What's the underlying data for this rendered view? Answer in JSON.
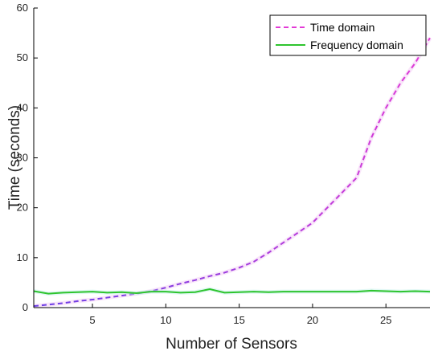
{
  "chart_data": {
    "type": "line",
    "title": "",
    "xlabel": "Number of Sensors",
    "ylabel": "Time (seconds)",
    "xlim": [
      1,
      28
    ],
    "ylim": [
      0,
      60
    ],
    "xticks": [
      5,
      10,
      15,
      20,
      25
    ],
    "yticks": [
      0,
      10,
      20,
      30,
      40,
      50,
      60
    ],
    "grid": false,
    "legend_position": "top-right",
    "series": [
      {
        "name": "Time domain",
        "style": "dashed",
        "color": "#e23ad6",
        "color_start": "#6a3ee6",
        "x": [
          1,
          2,
          3,
          4,
          5,
          6,
          7,
          8,
          9,
          10,
          11,
          12,
          13,
          14,
          15,
          16,
          17,
          18,
          19,
          20,
          21,
          22,
          23,
          24,
          25,
          26,
          27,
          28
        ],
        "values": [
          0.3,
          0.6,
          0.9,
          1.3,
          1.6,
          2.0,
          2.4,
          2.8,
          3.3,
          4.0,
          4.8,
          5.5,
          6.3,
          7.0,
          8.0,
          9.2,
          11.0,
          13.0,
          15.0,
          17.0,
          20.0,
          23.0,
          26.0,
          34.0,
          40.0,
          45.0,
          49.0,
          54.0
        ]
      },
      {
        "name": "Frequency domain",
        "style": "solid",
        "color": "#2ec42e",
        "x": [
          1,
          2,
          3,
          4,
          5,
          6,
          7,
          8,
          9,
          10,
          11,
          12,
          13,
          14,
          15,
          16,
          17,
          18,
          19,
          20,
          21,
          22,
          23,
          24,
          25,
          26,
          27,
          28
        ],
        "values": [
          3.3,
          2.8,
          3.0,
          3.1,
          3.2,
          3.0,
          3.1,
          2.9,
          3.2,
          3.2,
          3.0,
          3.1,
          3.7,
          3.0,
          3.1,
          3.2,
          3.1,
          3.2,
          3.2,
          3.2,
          3.2,
          3.2,
          3.2,
          3.4,
          3.3,
          3.2,
          3.3,
          3.2
        ]
      }
    ]
  }
}
